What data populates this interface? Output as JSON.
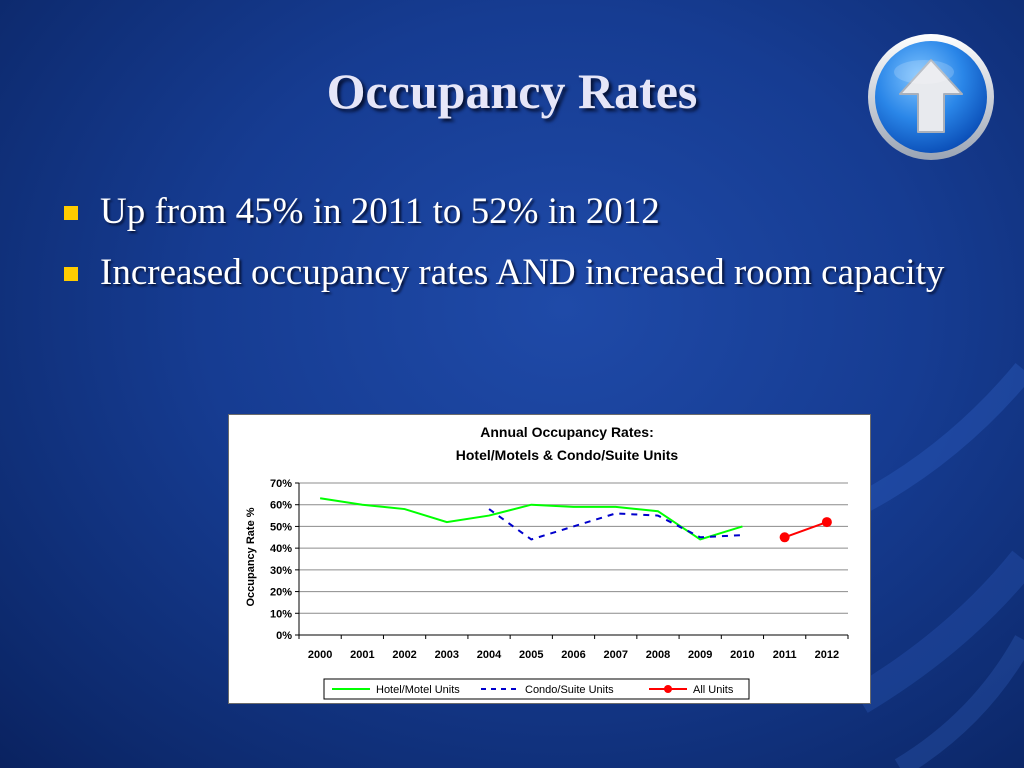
{
  "slide": {
    "title": "Occupancy Rates",
    "bullets": [
      "Up from 45% in 2011 to 52% in 2012",
      "Increased occupancy rates AND increased room capacity"
    ],
    "nav_icon": "up-arrow-icon"
  },
  "colors": {
    "background": "#163c92",
    "bullet_marker": "#ffcc00",
    "hotel_series": "#00ff00",
    "condo_series": "#0000cc",
    "all_units_series": "#ff0000"
  },
  "chart_data": {
    "type": "line",
    "title": "Annual Occupancy Rates:",
    "subtitle": "Hotel/Motels & Condo/Suite Units",
    "xlabel": "",
    "ylabel": "Occupancy Rate %",
    "categories": [
      "2000",
      "2001",
      "2002",
      "2003",
      "2004",
      "2005",
      "2006",
      "2007",
      "2008",
      "2009",
      "2010",
      "2011",
      "2012"
    ],
    "y_ticks": [
      "0%",
      "10%",
      "20%",
      "30%",
      "40%",
      "50%",
      "60%",
      "70%"
    ],
    "ylim": [
      0,
      70
    ],
    "grid": true,
    "legend_position": "bottom",
    "series": [
      {
        "name": "Hotel/Motel Units",
        "style": "solid",
        "markers": false,
        "values": [
          63,
          60,
          58,
          52,
          55,
          60,
          59,
          59,
          57,
          44,
          50,
          null,
          null
        ]
      },
      {
        "name": "Condo/Suite Units",
        "style": "dashed",
        "markers": false,
        "values": [
          null,
          null,
          null,
          null,
          58,
          44,
          50,
          56,
          55,
          45,
          46,
          null,
          null
        ]
      },
      {
        "name": "All Units",
        "style": "solid",
        "markers": true,
        "values": [
          null,
          null,
          null,
          null,
          null,
          null,
          null,
          null,
          null,
          null,
          null,
          45,
          52
        ]
      }
    ]
  }
}
